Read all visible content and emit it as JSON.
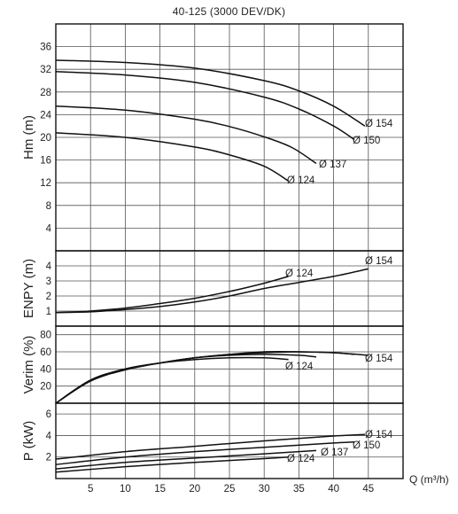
{
  "title": "40-125 (3000 DEV/DK)",
  "x_axis": {
    "label": "Q (m³/h)",
    "ticks": [
      5,
      10,
      15,
      20,
      25,
      30,
      35,
      40,
      45
    ]
  },
  "chart_data": [
    {
      "type": "line",
      "ylabel": "Hm (m)",
      "xlim": [
        0,
        50
      ],
      "ylim": [
        0,
        40
      ],
      "yticks": [
        4,
        8,
        12,
        16,
        20,
        24,
        28,
        32,
        36
      ],
      "grid": true,
      "series": [
        {
          "name": "154",
          "x": [
            0,
            10,
            20,
            30,
            35,
            40,
            44.5
          ],
          "values": [
            33.6,
            33.2,
            32.2,
            30.0,
            28.2,
            25.5,
            22.0
          ]
        },
        {
          "name": "150",
          "x": [
            0,
            10,
            20,
            30,
            35,
            40,
            43
          ],
          "values": [
            31.6,
            31.0,
            29.7,
            27.1,
            25.0,
            22.0,
            19.6
          ]
        },
        {
          "name": "137",
          "x": [
            0,
            10,
            20,
            25,
            30,
            34,
            37.5
          ],
          "values": [
            25.5,
            24.8,
            23.2,
            21.9,
            20.1,
            18.2,
            15.4
          ]
        },
        {
          "name": "124",
          "x": [
            0,
            10,
            20,
            25,
            30,
            33.5
          ],
          "values": [
            20.8,
            20.0,
            18.3,
            16.9,
            14.9,
            12.3
          ]
        }
      ],
      "labels": [
        "Ø 154",
        "Ø 150",
        "Ø 137",
        "Ø 124"
      ]
    },
    {
      "type": "line",
      "ylabel": "ENPY (m)",
      "xlim": [
        0,
        50
      ],
      "ylim": [
        0,
        5
      ],
      "yticks": [
        1,
        2,
        3,
        4
      ],
      "grid": true,
      "series": [
        {
          "name": "154",
          "x": [
            0,
            5,
            10,
            15,
            20,
            25,
            30,
            35,
            40,
            45
          ],
          "values": [
            0.9,
            0.95,
            1.1,
            1.3,
            1.6,
            2.0,
            2.5,
            2.9,
            3.3,
            3.8
          ]
        },
        {
          "name": "124",
          "x": [
            0,
            5,
            10,
            15,
            20,
            25,
            30,
            33.5
          ],
          "values": [
            0.9,
            1.0,
            1.2,
            1.5,
            1.85,
            2.3,
            2.85,
            3.3
          ]
        }
      ],
      "labels": [
        "Ø 154",
        "Ø 124"
      ]
    },
    {
      "type": "line",
      "ylabel": "Verim (%)",
      "xlim": [
        0,
        50
      ],
      "ylim": [
        0,
        90
      ],
      "yticks": [
        20,
        40,
        60,
        80
      ],
      "grid": true,
      "series": [
        {
          "name": "154",
          "x": [
            0,
            5,
            10,
            15,
            20,
            25,
            30,
            35,
            40,
            45
          ],
          "values": [
            0,
            26,
            39,
            47,
            53,
            57,
            60,
            60,
            59,
            56
          ]
        },
        {
          "name": "150",
          "x": [
            0,
            5,
            10,
            15,
            20,
            25,
            30,
            35,
            40,
            43
          ],
          "values": [
            0,
            26,
            39,
            47,
            53,
            57,
            59,
            60,
            59,
            57
          ]
        },
        {
          "name": "137",
          "x": [
            0,
            5,
            10,
            15,
            20,
            25,
            30,
            35,
            37.5
          ],
          "values": [
            0,
            27,
            40,
            47,
            53,
            56,
            57,
            56,
            54
          ]
        },
        {
          "name": "124",
          "x": [
            0,
            5,
            10,
            15,
            20,
            25,
            30,
            33.5
          ],
          "values": [
            0,
            27,
            40,
            47,
            51,
            53,
            53,
            51
          ]
        }
      ],
      "labels": [
        "Ø 154",
        "Ø 124"
      ]
    },
    {
      "type": "line",
      "ylabel": "P (kW)",
      "xlim": [
        0,
        50
      ],
      "ylim": [
        0,
        7
      ],
      "yticks": [
        2,
        4,
        6
      ],
      "grid": true,
      "series": [
        {
          "name": "154",
          "x": [
            0,
            10,
            20,
            30,
            40,
            44.5
          ],
          "values": [
            1.8,
            2.5,
            3.0,
            3.5,
            3.95,
            4.1
          ]
        },
        {
          "name": "150",
          "x": [
            0,
            10,
            20,
            30,
            40,
            43
          ],
          "values": [
            1.3,
            2.0,
            2.5,
            2.9,
            3.3,
            3.4
          ]
        },
        {
          "name": "137",
          "x": [
            0,
            10,
            20,
            30,
            37.5
          ],
          "values": [
            0.9,
            1.5,
            1.9,
            2.3,
            2.6
          ]
        },
        {
          "name": "124",
          "x": [
            0,
            10,
            20,
            30,
            33.5
          ],
          "values": [
            0.6,
            1.1,
            1.5,
            1.85,
            2.0
          ]
        }
      ],
      "labels": [
        "Ø 154",
        "Ø 150",
        "Ø 137",
        "Ø 124"
      ]
    }
  ]
}
